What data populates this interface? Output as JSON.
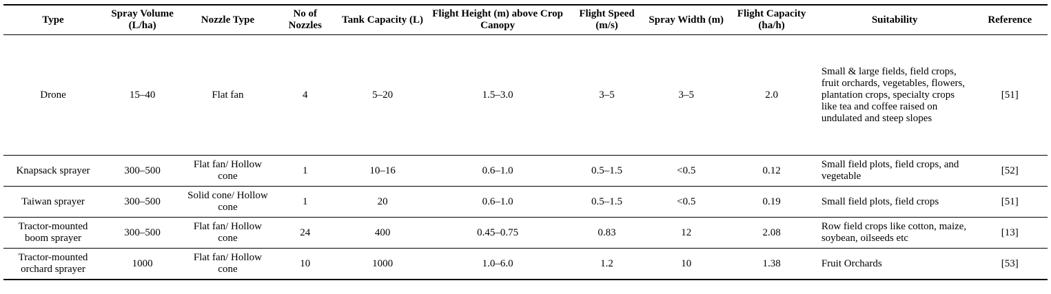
{
  "table": {
    "headers": [
      "Type",
      "Spray Volume (L/ha)",
      "Nozzle Type",
      "No of Nozzles",
      "Tank Capacity (L)",
      "Flight Height (m) above Crop Canopy",
      "Flight Speed (m/s)",
      "Spray Width (m)",
      "Flight Capacity (ha/h)",
      "Suitability",
      "Reference"
    ],
    "rows": [
      [
        "Drone",
        "15–40",
        "Flat fan",
        "4",
        "5–20",
        "1.5–3.0",
        "3–5",
        "3–5",
        "2.0",
        "Small & large fields, field crops, fruit orchards, vegetables, flowers, plantation crops, specialty crops like tea and coffee raised on undulated and steep slopes",
        "[51]"
      ],
      [
        "Knapsack sprayer",
        "300–500",
        "Flat fan/ Hollow cone",
        "1",
        "10–16",
        "0.6–1.0",
        "0.5–1.5",
        "<0.5",
        "0.12",
        "Small field plots, field crops, and vegetable",
        "[52]"
      ],
      [
        "Taiwan sprayer",
        "300–500",
        "Solid cone/ Hollow cone",
        "1",
        "20",
        "0.6–1.0",
        "0.5–1.5",
        "<0.5",
        "0.19",
        "Small field plots, field crops",
        "[51]"
      ],
      [
        "Tractor-mounted boom sprayer",
        "300–500",
        "Flat fan/ Hollow cone",
        "24",
        "400",
        "0.45–0.75",
        "0.83",
        "12",
        "2.08",
        "Row field crops like cotton, maize, soybean, oilseeds etc",
        "[13]"
      ],
      [
        "Tractor-mounted orchard sprayer",
        "1000",
        "Flat fan/ Hollow cone",
        "10",
        "1000",
        "1.0–6.0",
        "1.2",
        "10",
        "1.38",
        "Fruit Orchards",
        "[53]"
      ]
    ]
  }
}
